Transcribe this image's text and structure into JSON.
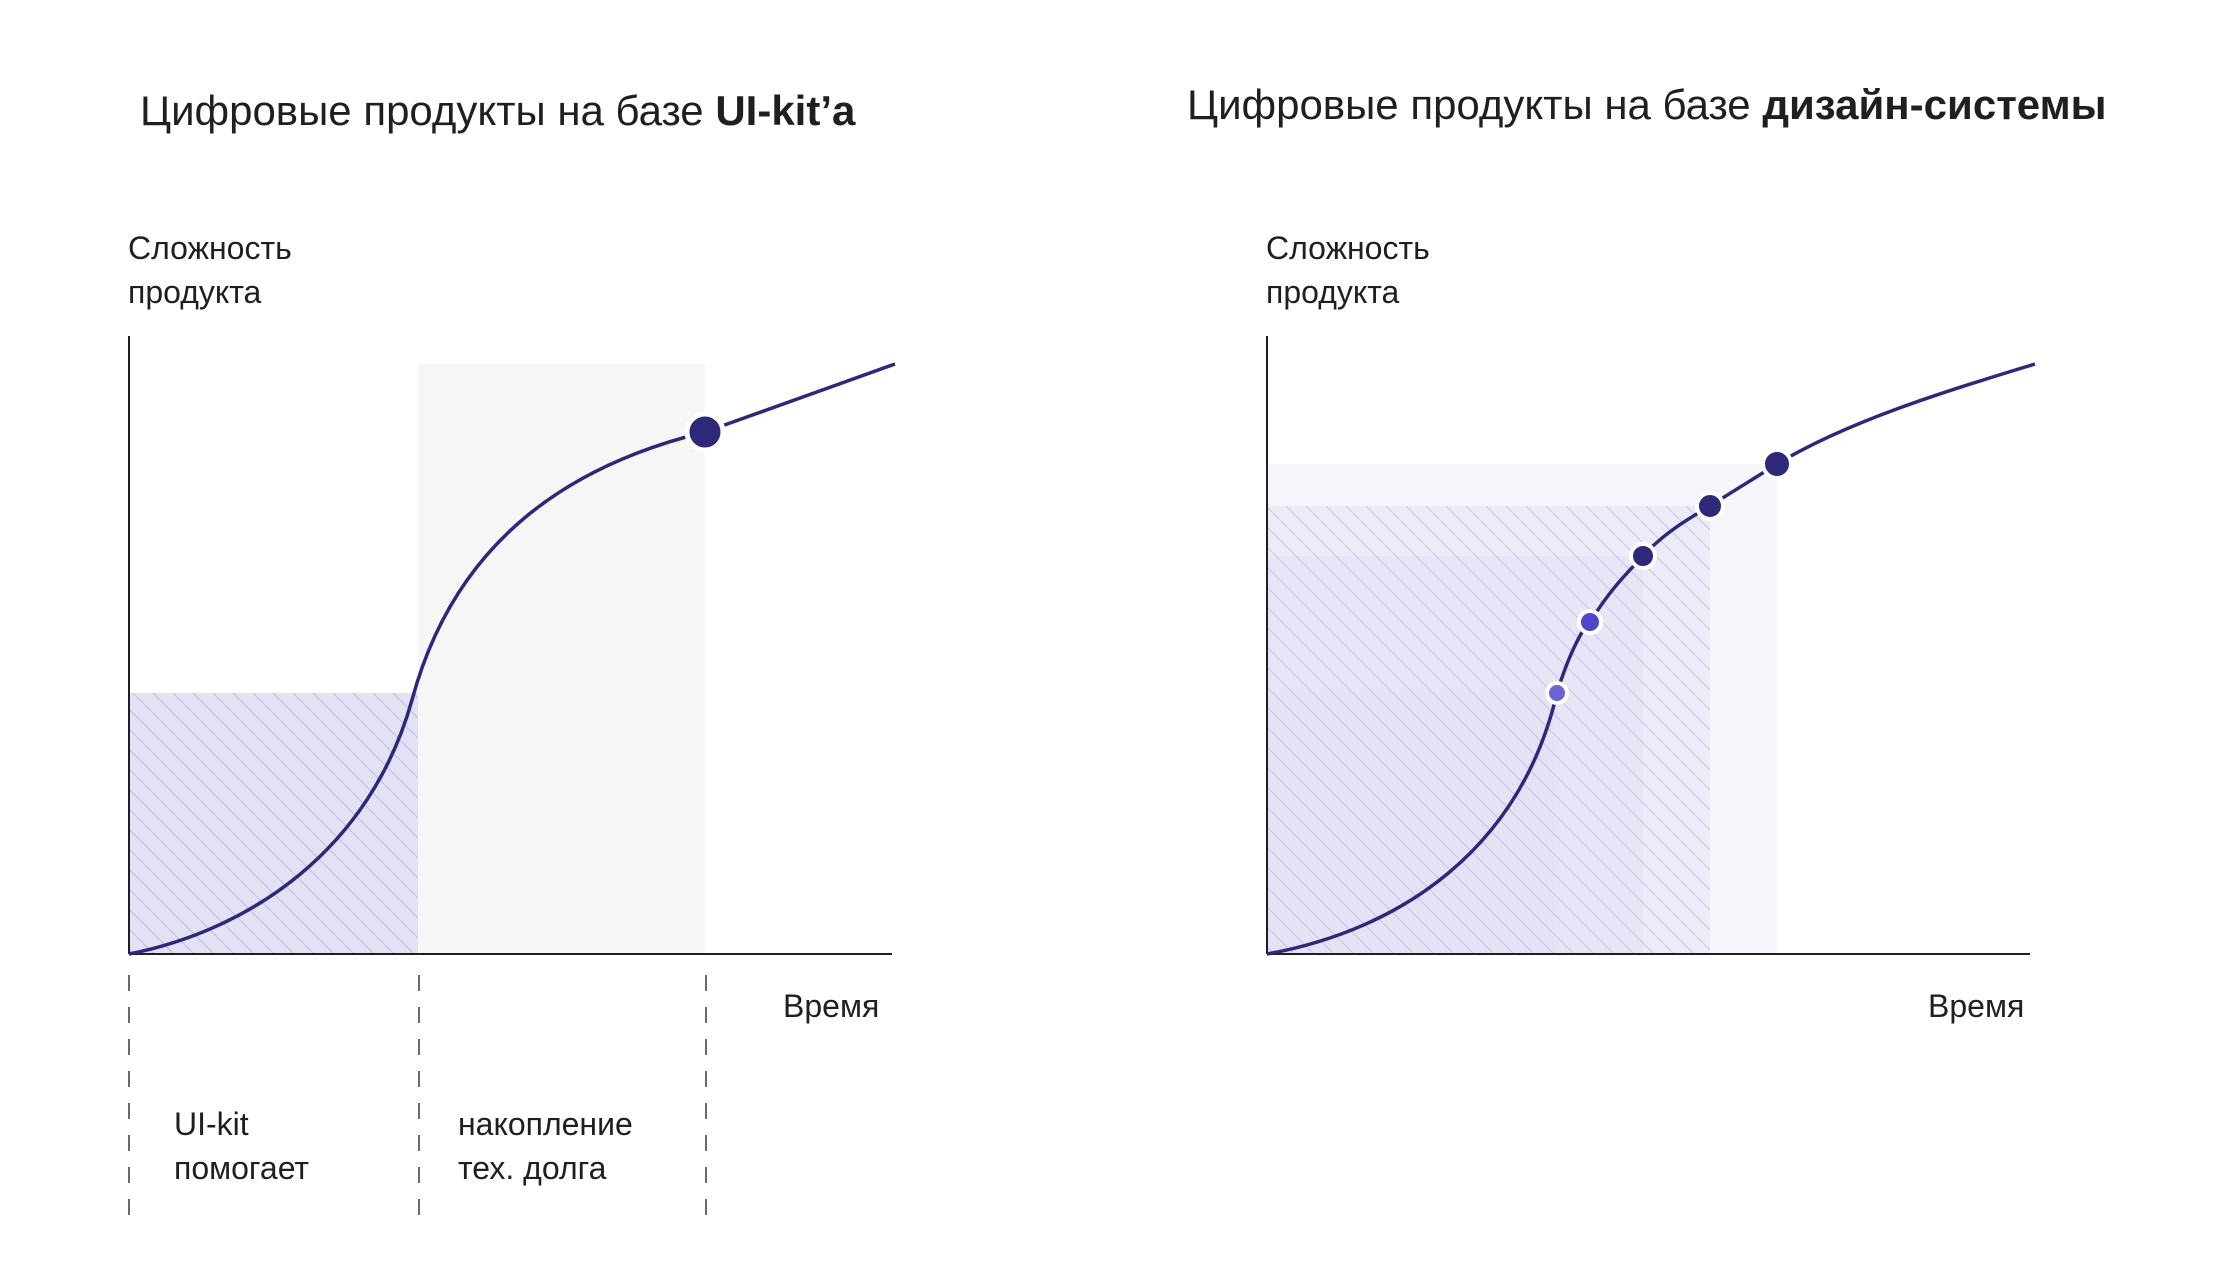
{
  "left": {
    "title_prefix": "Цифровые продукты на базе ",
    "title_bold": "UI-kit’a",
    "ylabel_line1": "Сложность",
    "ylabel_line2": "продукта",
    "xlabel": "Время",
    "phase1_line1": "UI-kit",
    "phase1_line2": "помогает",
    "phase2_line1": "накопление",
    "phase2_line2": "тех. долга"
  },
  "right": {
    "title_prefix": "Цифровые продукты на базе ",
    "title_bold": "дизайн-системы",
    "ylabel_line1": "Сложность",
    "ylabel_line2": "продукта",
    "xlabel": "Время"
  },
  "colors": {
    "curve": "#2e2878",
    "axis": "#1f1f1f",
    "hatch_fill": "#e3e1f4",
    "gray_zone": "#f6f6f6",
    "point_dark": "#2e2878",
    "point_mid": "#5046c8",
    "point_light": "#6c63d0"
  }
}
